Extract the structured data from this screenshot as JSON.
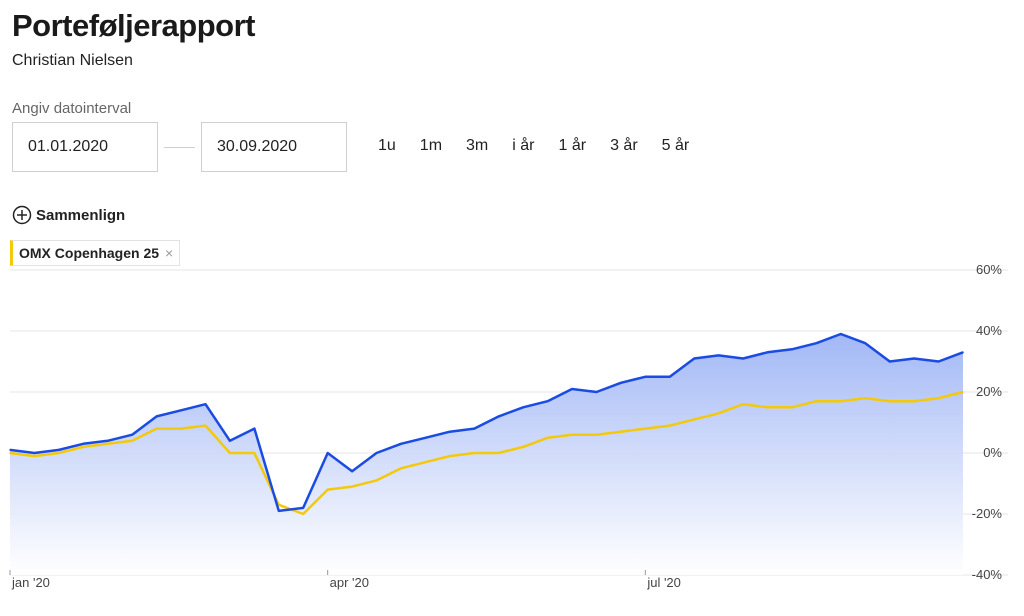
{
  "header": {
    "title": "Porteføljerapport",
    "subtitle": "Christian Nielsen"
  },
  "date_range": {
    "label": "Angiv datointerval",
    "from": "01.01.2020",
    "to": "30.09.2020"
  },
  "presets": [
    "1u",
    "1m",
    "3m",
    "i år",
    "1 år",
    "3 år",
    "5 år"
  ],
  "compare": {
    "label": "Sammenlign",
    "chip_label": "OMX Copenhagen 25",
    "chip_close": "×"
  },
  "colors": {
    "portfolio_line": "#1a4be3",
    "benchmark_line": "#f4c90a",
    "area_top": "#9db4f5",
    "area_bottom": "#ffffff",
    "grid": "#e6e6e6"
  },
  "chart_data": {
    "type": "line",
    "x_range": [
      "2020-01-01",
      "2020-09-30"
    ],
    "ylim": [
      -40,
      60
    ],
    "y_ticks": [
      "60%",
      "40%",
      "20%",
      "0%",
      "-20%",
      "-40%"
    ],
    "y_tick_values": [
      60,
      40,
      20,
      0,
      -20,
      -40
    ],
    "x_ticks": [
      {
        "label": "jan '20",
        "date": "2020-01-01"
      },
      {
        "label": "apr '20",
        "date": "2020-04-01"
      },
      {
        "label": "jul '20",
        "date": "2020-07-01"
      }
    ],
    "grid": true,
    "series": [
      {
        "color": "#1a4be3",
        "points": [
          [
            "2020-01-01",
            1
          ],
          [
            "2020-01-08",
            0
          ],
          [
            "2020-01-15",
            1
          ],
          [
            "2020-01-22",
            3
          ],
          [
            "2020-01-29",
            4
          ],
          [
            "2020-02-05",
            6
          ],
          [
            "2020-02-12",
            12
          ],
          [
            "2020-02-19",
            14
          ],
          [
            "2020-02-26",
            16
          ],
          [
            "2020-03-04",
            4
          ],
          [
            "2020-03-11",
            8
          ],
          [
            "2020-03-18",
            -19
          ],
          [
            "2020-03-25",
            -18
          ],
          [
            "2020-04-01",
            0
          ],
          [
            "2020-04-08",
            -6
          ],
          [
            "2020-04-15",
            0
          ],
          [
            "2020-04-22",
            3
          ],
          [
            "2020-04-29",
            5
          ],
          [
            "2020-05-06",
            7
          ],
          [
            "2020-05-13",
            8
          ],
          [
            "2020-05-20",
            12
          ],
          [
            "2020-05-27",
            15
          ],
          [
            "2020-06-03",
            17
          ],
          [
            "2020-06-10",
            21
          ],
          [
            "2020-06-17",
            20
          ],
          [
            "2020-06-24",
            23
          ],
          [
            "2020-07-01",
            25
          ],
          [
            "2020-07-08",
            25
          ],
          [
            "2020-07-15",
            31
          ],
          [
            "2020-07-22",
            32
          ],
          [
            "2020-07-29",
            31
          ],
          [
            "2020-08-05",
            33
          ],
          [
            "2020-08-12",
            34
          ],
          [
            "2020-08-19",
            36
          ],
          [
            "2020-08-26",
            39
          ],
          [
            "2020-09-02",
            36
          ],
          [
            "2020-09-09",
            30
          ],
          [
            "2020-09-16",
            31
          ],
          [
            "2020-09-23",
            30
          ],
          [
            "2020-09-30",
            33
          ]
        ]
      },
      {
        "color": "#f4c90a",
        "points": [
          [
            "2020-01-01",
            0
          ],
          [
            "2020-01-08",
            -1
          ],
          [
            "2020-01-15",
            0
          ],
          [
            "2020-01-22",
            2
          ],
          [
            "2020-01-29",
            3
          ],
          [
            "2020-02-05",
            4
          ],
          [
            "2020-02-12",
            8
          ],
          [
            "2020-02-19",
            8
          ],
          [
            "2020-02-26",
            9
          ],
          [
            "2020-03-04",
            0
          ],
          [
            "2020-03-11",
            0
          ],
          [
            "2020-03-18",
            -17
          ],
          [
            "2020-03-25",
            -20
          ],
          [
            "2020-04-01",
            -12
          ],
          [
            "2020-04-08",
            -11
          ],
          [
            "2020-04-15",
            -9
          ],
          [
            "2020-04-22",
            -5
          ],
          [
            "2020-04-29",
            -3
          ],
          [
            "2020-05-06",
            -1
          ],
          [
            "2020-05-13",
            0
          ],
          [
            "2020-05-20",
            0
          ],
          [
            "2020-05-27",
            2
          ],
          [
            "2020-06-03",
            5
          ],
          [
            "2020-06-10",
            6
          ],
          [
            "2020-06-17",
            6
          ],
          [
            "2020-06-24",
            7
          ],
          [
            "2020-07-01",
            8
          ],
          [
            "2020-07-08",
            9
          ],
          [
            "2020-07-15",
            11
          ],
          [
            "2020-07-22",
            13
          ],
          [
            "2020-07-29",
            16
          ],
          [
            "2020-08-05",
            15
          ],
          [
            "2020-08-12",
            15
          ],
          [
            "2020-08-19",
            17
          ],
          [
            "2020-08-26",
            17
          ],
          [
            "2020-09-02",
            18
          ],
          [
            "2020-09-09",
            17
          ],
          [
            "2020-09-16",
            17
          ],
          [
            "2020-09-23",
            18
          ],
          [
            "2020-09-30",
            20
          ]
        ]
      }
    ]
  }
}
